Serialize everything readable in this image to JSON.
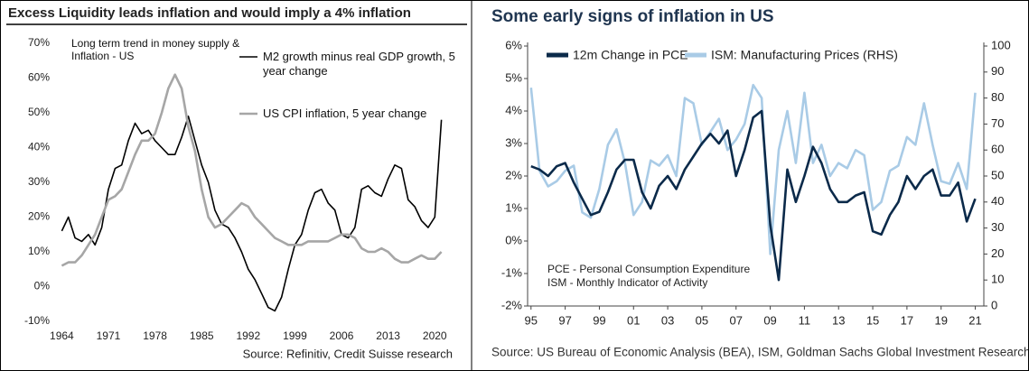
{
  "chart_data": [
    {
      "type": "line",
      "title": "Excess Liquidity leads inflation and would imply a 4% inflation",
      "annotation": "Long term trend in money supply & Inflation - US",
      "source": "Source: Refinitiv, Credit Suisse research",
      "x": [
        1964,
        1965,
        1966,
        1967,
        1968,
        1969,
        1970,
        1971,
        1972,
        1973,
        1974,
        1975,
        1976,
        1977,
        1978,
        1979,
        1980,
        1981,
        1982,
        1983,
        1984,
        1985,
        1986,
        1987,
        1988,
        1989,
        1990,
        1991,
        1992,
        1993,
        1994,
        1995,
        1996,
        1997,
        1998,
        1999,
        2000,
        2001,
        2002,
        2003,
        2004,
        2005,
        2006,
        2007,
        2008,
        2009,
        2010,
        2011,
        2012,
        2013,
        2014,
        2015,
        2016,
        2017,
        2018,
        2019,
        2020,
        2021
      ],
      "series": [
        {
          "name": "M2 growth minus real GDP growth, 5 year change",
          "color": "#000000",
          "values": [
            16,
            20,
            14,
            13,
            15,
            12,
            17,
            28,
            34,
            35,
            42,
            47,
            44,
            45,
            42,
            40,
            38,
            38,
            43,
            49,
            42,
            35,
            30,
            22,
            18,
            17,
            14,
            10,
            5,
            2,
            -2,
            -6,
            -7,
            -3,
            5,
            12,
            15,
            22,
            27,
            28,
            24,
            22,
            15,
            14,
            17,
            28,
            29,
            27,
            26,
            31,
            35,
            34,
            25,
            23,
            19,
            17,
            20,
            48
          ]
        },
        {
          "name": "US CPI inflation, 5 year change",
          "color": "#a6a6a6",
          "values": [
            6,
            7,
            7,
            9,
            12,
            15,
            20,
            25,
            26,
            28,
            33,
            38,
            42,
            42,
            44,
            50,
            57,
            61,
            57,
            46,
            39,
            28,
            20,
            17,
            18,
            20,
            22,
            24,
            23,
            20,
            18,
            16,
            14,
            13,
            12,
            12,
            12,
            13,
            13,
            13,
            13,
            14,
            15,
            15,
            14,
            11,
            10,
            10,
            11,
            10,
            8,
            7,
            7,
            8,
            9,
            8,
            8,
            10
          ]
        }
      ],
      "xlim": [
        1963,
        2022
      ],
      "xticks": [
        1964,
        1971,
        1978,
        1985,
        1992,
        1999,
        2006,
        2013,
        2020
      ],
      "ylim": [
        -10,
        70
      ],
      "yticks": [
        {
          "value": -10,
          "label": "-10%"
        },
        {
          "value": 0,
          "label": "0%"
        },
        {
          "value": 10,
          "label": "10%"
        },
        {
          "value": 20,
          "label": "20%"
        },
        {
          "value": 30,
          "label": "30%"
        },
        {
          "value": 40,
          "label": "40%"
        },
        {
          "value": 50,
          "label": "50%"
        },
        {
          "value": 60,
          "label": "60%"
        },
        {
          "value": 70,
          "label": "70%"
        }
      ],
      "grid": false
    },
    {
      "type": "line",
      "title": "Some early signs of inflation in US",
      "annotations": [
        "PCE - Personal Consumption Expenditure",
        "ISM - Monthly Indicator of Activity"
      ],
      "source": "Source: US Bureau of Economic Analysis (BEA), ISM, Goldman Sachs Global Investment Research",
      "x": [
        1995,
        1995.5,
        1996,
        1996.5,
        1997,
        1997.5,
        1998,
        1998.5,
        1999,
        1999.5,
        2000,
        2000.5,
        2001,
        2001.5,
        2002,
        2002.5,
        2003,
        2003.5,
        2004,
        2004.5,
        2005,
        2005.5,
        2006,
        2006.5,
        2007,
        2007.5,
        2008,
        2008.5,
        2009,
        2009.5,
        2010,
        2010.5,
        2011,
        2011.5,
        2012,
        2012.5,
        2013,
        2013.5,
        2014,
        2014.5,
        2015,
        2015.5,
        2016,
        2016.5,
        2017,
        2017.5,
        2018,
        2018.5,
        2019,
        2019.5,
        2020,
        2020.5,
        2021
      ],
      "series": [
        {
          "name": "12m Change in PCE",
          "color": "#0b2a4a",
          "values": [
            2.3,
            2.2,
            2.0,
            2.3,
            2.4,
            1.8,
            1.3,
            0.8,
            0.9,
            1.5,
            2.2,
            2.5,
            2.5,
            1.5,
            1.0,
            1.7,
            2.0,
            1.6,
            2.2,
            2.6,
            3.0,
            3.3,
            3.0,
            3.4,
            2.0,
            2.8,
            3.8,
            4.0,
            0.5,
            -1.2,
            2.2,
            1.2,
            2.0,
            2.9,
            2.4,
            1.6,
            1.2,
            1.2,
            1.4,
            1.5,
            0.3,
            0.2,
            0.8,
            1.2,
            2.0,
            1.6,
            2.0,
            2.2,
            1.4,
            1.4,
            1.8,
            0.6,
            1.3
          ]
        },
        {
          "name": "ISM: Manufacturing Prices (RHS)",
          "color": "#a9cbe6",
          "axis": "y2",
          "values": [
            84,
            52,
            46,
            48,
            52,
            54,
            36,
            34,
            45,
            62,
            68,
            55,
            35,
            40,
            56,
            54,
            58,
            50,
            80,
            78,
            62,
            67,
            72,
            60,
            64,
            70,
            85,
            80,
            20,
            60,
            75,
            55,
            82,
            55,
            62,
            50,
            55,
            53,
            60,
            58,
            37,
            40,
            52,
            54,
            65,
            62,
            78,
            62,
            48,
            47,
            55,
            45,
            82
          ]
        }
      ],
      "xlim": [
        1994.8,
        2021.5
      ],
      "xticks": [
        {
          "value": 1995,
          "label": "95"
        },
        {
          "value": 1997,
          "label": "97"
        },
        {
          "value": 1999,
          "label": "99"
        },
        {
          "value": 2001,
          "label": "01"
        },
        {
          "value": 2003,
          "label": "03"
        },
        {
          "value": 2005,
          "label": "05"
        },
        {
          "value": 2007,
          "label": "07"
        },
        {
          "value": 2009,
          "label": "09"
        },
        {
          "value": 2011,
          "label": "11"
        },
        {
          "value": 2013,
          "label": "13"
        },
        {
          "value": 2015,
          "label": "15"
        },
        {
          "value": 2017,
          "label": "17"
        },
        {
          "value": 2019,
          "label": "19"
        },
        {
          "value": 2021,
          "label": "21"
        }
      ],
      "ylim": [
        -2,
        6
      ],
      "yticks": [
        {
          "value": -2,
          "label": "-2%"
        },
        {
          "value": -1,
          "label": "-1%"
        },
        {
          "value": 0,
          "label": "0%"
        },
        {
          "value": 1,
          "label": "1%"
        },
        {
          "value": 2,
          "label": "2%"
        },
        {
          "value": 3,
          "label": "3%"
        },
        {
          "value": 4,
          "label": "4%"
        },
        {
          "value": 5,
          "label": "5%"
        },
        {
          "value": 6,
          "label": "6%"
        }
      ],
      "y2lim": [
        0,
        100
      ],
      "y2ticks": [
        0,
        10,
        20,
        30,
        40,
        50,
        60,
        70,
        80,
        90,
        100
      ],
      "grid": false
    }
  ]
}
